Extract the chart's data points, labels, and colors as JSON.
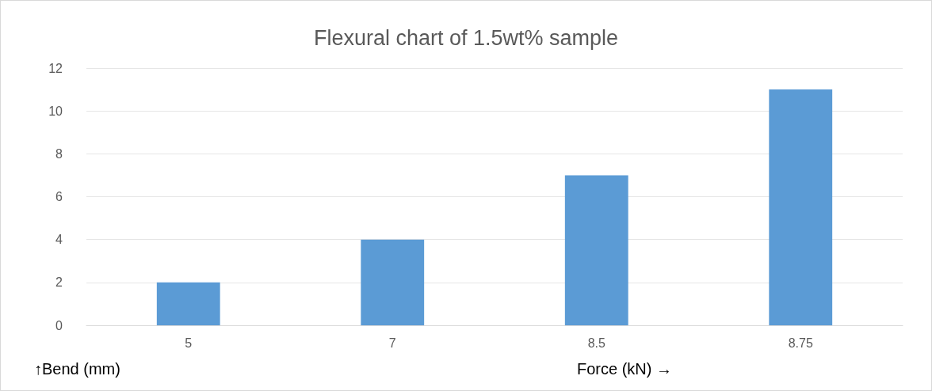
{
  "chart_data": {
    "type": "bar",
    "title": "Flexural chart of 1.5wt% sample",
    "xlabel": "Force (kN) →",
    "ylabel": "↑Bend (mm)",
    "categories": [
      "5",
      "7",
      "8.5",
      "8.75"
    ],
    "values": [
      2,
      4,
      7,
      11
    ],
    "color": "#5b9bd5",
    "ylim": [
      0,
      12
    ],
    "yticks": [
      0,
      2,
      4,
      6,
      8,
      10,
      12
    ],
    "grid": "y"
  }
}
